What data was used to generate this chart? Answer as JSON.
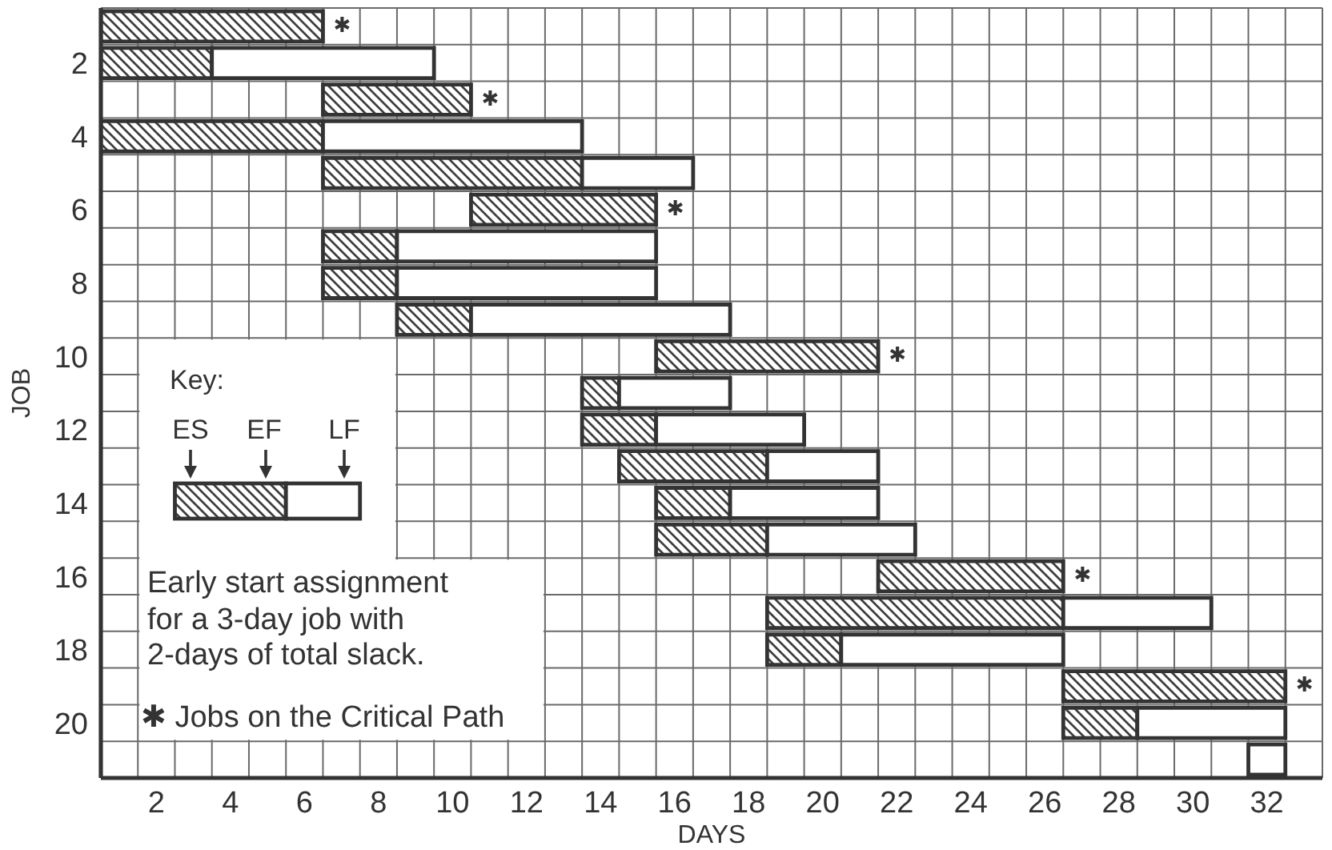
{
  "chart_data": {
    "type": "bar",
    "orientation": "horizontal",
    "xlabel": "DAYS",
    "ylabel": "JOB",
    "categories": [
      null,
      "2",
      null,
      "4",
      null,
      "6",
      null,
      "8",
      null,
      "10",
      null,
      "12",
      null,
      "14",
      null,
      "16",
      null,
      "18",
      null,
      "20",
      null
    ],
    "series": [
      {
        "color": "#333333",
        "base": [
          0,
          0,
          6,
          0,
          6,
          10,
          6,
          6,
          8,
          15,
          13,
          13,
          14,
          15,
          15,
          21,
          18,
          18,
          26,
          26,
          null
        ],
        "values": [
          6,
          3,
          4,
          6,
          7,
          5,
          2,
          2,
          2,
          6,
          1,
          2,
          4,
          2,
          3,
          5,
          8,
          2,
          6,
          2,
          null
        ],
        "value_labels": [
          "✱",
          null,
          "✱",
          null,
          null,
          "✱",
          null,
          null,
          null,
          "✱",
          null,
          null,
          null,
          null,
          null,
          "✱",
          null,
          null,
          "✱",
          null,
          null
        ]
      },
      {
        "color": "#ffffff",
        "base": [
          null,
          3,
          null,
          6,
          13,
          null,
          8,
          8,
          10,
          null,
          14,
          15,
          18,
          17,
          18,
          null,
          26,
          20,
          null,
          28,
          31
        ],
        "values": [
          null,
          6,
          null,
          7,
          3,
          null,
          7,
          7,
          7,
          null,
          3,
          4,
          3,
          4,
          4,
          null,
          4,
          6,
          null,
          4,
          1
        ]
      }
    ],
    "xlim": [
      0,
      33
    ],
    "xticks": [
      {
        "value": 0,
        "label": null
      },
      {
        "value": 1,
        "label": null
      },
      {
        "value": 1.5,
        "label": "2"
      },
      {
        "value": 2,
        "label": null
      },
      {
        "value": 3,
        "label": null
      },
      {
        "value": 3.5,
        "label": "4"
      },
      {
        "value": 4,
        "label": null
      },
      {
        "value": 5,
        "label": null
      },
      {
        "value": 5.5,
        "label": "6"
      },
      {
        "value": 6,
        "label": null
      },
      {
        "value": 7,
        "label": null
      },
      {
        "value": 7.5,
        "label": "8"
      },
      {
        "value": 8,
        "label": null
      },
      {
        "value": 9,
        "label": null
      },
      {
        "value": 9.5,
        "label": "10"
      },
      {
        "value": 10,
        "label": null
      },
      {
        "value": 11,
        "label": null
      },
      {
        "value": 11.5,
        "label": "12"
      },
      {
        "value": 12,
        "label": null
      },
      {
        "value": 13,
        "label": null
      },
      {
        "value": 13.5,
        "label": "14"
      },
      {
        "value": 14,
        "label": null
      },
      {
        "value": 15,
        "label": null
      },
      {
        "value": 15.5,
        "label": "16"
      },
      {
        "value": 16,
        "label": null
      },
      {
        "value": 17,
        "label": null
      },
      {
        "value": 17.5,
        "label": "18"
      },
      {
        "value": 18,
        "label": null
      },
      {
        "value": 19,
        "label": null
      },
      {
        "value": 19.5,
        "label": "20"
      },
      {
        "value": 20,
        "label": null
      },
      {
        "value": 21,
        "label": null
      },
      {
        "value": 21.5,
        "label": "22"
      },
      {
        "value": 22,
        "label": null
      },
      {
        "value": 23,
        "label": null
      },
      {
        "value": 23.5,
        "label": "24"
      },
      {
        "value": 24,
        "label": null
      },
      {
        "value": 25,
        "label": null
      },
      {
        "value": 25.5,
        "label": "26"
      },
      {
        "value": 26,
        "label": null
      },
      {
        "value": 27,
        "label": null
      },
      {
        "value": 27.5,
        "label": "28"
      },
      {
        "value": 28,
        "label": null
      },
      {
        "value": 29,
        "label": null
      },
      {
        "value": 29.5,
        "label": "30"
      },
      {
        "value": 30,
        "label": null
      },
      {
        "value": 31,
        "label": null
      },
      {
        "value": 31.5,
        "label": "32"
      },
      {
        "value": 32,
        "label": null
      },
      {
        "value": 33,
        "label": null
      }
    ],
    "grid": true,
    "annotations": [
      "Key:",
      "ES",
      "EF",
      "LF",
      "Early start assignment for a 3-day job with 2-days of total slack.",
      "✱ Jobs on the Critical Path"
    ]
  }
}
